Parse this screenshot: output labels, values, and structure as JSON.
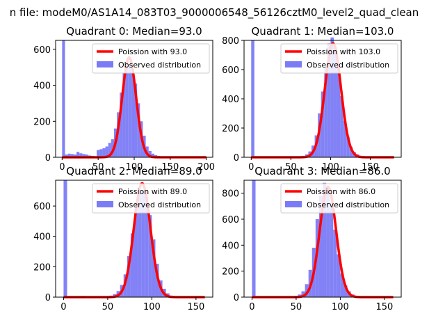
{
  "figure_title": "n file: modeM0/AS1A14_083T03_9000006548_56126cztM0_level2_quad_clean",
  "colors": {
    "poisson": "#ff0000",
    "observed": "#7b7bf6",
    "axis": "#000000"
  },
  "chart_data": [
    {
      "type": "bar",
      "title": "Quadrant 0: Median=93.0",
      "median": 93.0,
      "xlim": [
        -9,
        209
      ],
      "ylim": [
        0,
        650
      ],
      "xticks": [
        0,
        50,
        100,
        150,
        200
      ],
      "yticks": [
        0,
        200,
        400,
        600
      ],
      "legend": [
        "Poission with 93.0",
        "Observed distribution"
      ],
      "legend_position": "top-right",
      "bin_width": 4,
      "bins": [
        0,
        4,
        8,
        12,
        16,
        20,
        24,
        28,
        32,
        36,
        40,
        44,
        48,
        52,
        56,
        60,
        64,
        68,
        72,
        76,
        80,
        84,
        88,
        92,
        96,
        100,
        104,
        108,
        112,
        116,
        120,
        124,
        128,
        132,
        136,
        140,
        144
      ],
      "counts": [
        650,
        15,
        20,
        18,
        15,
        30,
        22,
        18,
        15,
        10,
        8,
        5,
        40,
        45,
        50,
        60,
        80,
        100,
        160,
        250,
        360,
        470,
        530,
        520,
        470,
        410,
        300,
        200,
        120,
        60,
        35,
        20,
        12,
        8,
        5,
        3,
        2
      ],
      "curve_peak": 555
    },
    {
      "type": "bar",
      "title": "Quadrant 1: Median=103.0",
      "median": 103.0,
      "xlim": [
        -9,
        189
      ],
      "ylim": [
        0,
        800
      ],
      "xticks": [
        0,
        50,
        100,
        150
      ],
      "yticks": [
        0,
        200,
        400,
        600,
        800
      ],
      "legend": [
        "Poission with 103.0",
        "Observed distribution"
      ],
      "legend_position": "top-right",
      "bin_width": 4,
      "bins": [
        0,
        64,
        68,
        72,
        76,
        80,
        84,
        88,
        92,
        96,
        100,
        104,
        108,
        112,
        116,
        120,
        124,
        128,
        132,
        136,
        140,
        144,
        148
      ],
      "counts": [
        800,
        10,
        20,
        40,
        80,
        150,
        300,
        450,
        620,
        780,
        820,
        760,
        620,
        420,
        250,
        140,
        70,
        35,
        20,
        10,
        5,
        3,
        2
      ],
      "curve_peak": 780
    },
    {
      "type": "bar",
      "title": "Quadrant 2: Median=89.0",
      "median": 89.0,
      "xlim": [
        -9,
        169
      ],
      "ylim": [
        0,
        770
      ],
      "xticks": [
        0,
        50,
        100,
        150
      ],
      "yticks": [
        0,
        200,
        400,
        600
      ],
      "legend": [
        "Poission with 89.0",
        "Observed distribution"
      ],
      "legend_position": "top-right",
      "bin_width": 4,
      "bins": [
        0,
        20,
        28,
        48,
        52,
        56,
        60,
        64,
        68,
        72,
        76,
        80,
        84,
        88,
        92,
        96,
        100,
        104,
        108,
        112,
        116,
        120,
        124,
        128
      ],
      "counts": [
        770,
        8,
        5,
        5,
        10,
        20,
        40,
        80,
        150,
        270,
        420,
        580,
        690,
        700,
        660,
        540,
        380,
        220,
        110,
        55,
        25,
        10,
        5,
        2
      ],
      "curve_peak": 750
    },
    {
      "type": "bar",
      "title": "Quadrant 3: Median=86.0",
      "median": 86.0,
      "xlim": [
        -9,
        169
      ],
      "ylim": [
        0,
        900
      ],
      "xticks": [
        0,
        50,
        100,
        150
      ],
      "yticks": [
        0,
        200,
        400,
        600,
        800
      ],
      "legend": [
        "Poission with 86.0",
        "Observed distribution"
      ],
      "legend_position": "top-right",
      "bin_width": 4,
      "bins": [
        0,
        44,
        48,
        52,
        56,
        60,
        64,
        68,
        72,
        76,
        80,
        84,
        88,
        92,
        96,
        100,
        104,
        108,
        112,
        116,
        120,
        124
      ],
      "counts": [
        900,
        5,
        10,
        20,
        45,
        100,
        210,
        380,
        600,
        780,
        880,
        840,
        700,
        520,
        330,
        180,
        90,
        45,
        20,
        10,
        5,
        2
      ],
      "curve_peak": 850
    }
  ]
}
